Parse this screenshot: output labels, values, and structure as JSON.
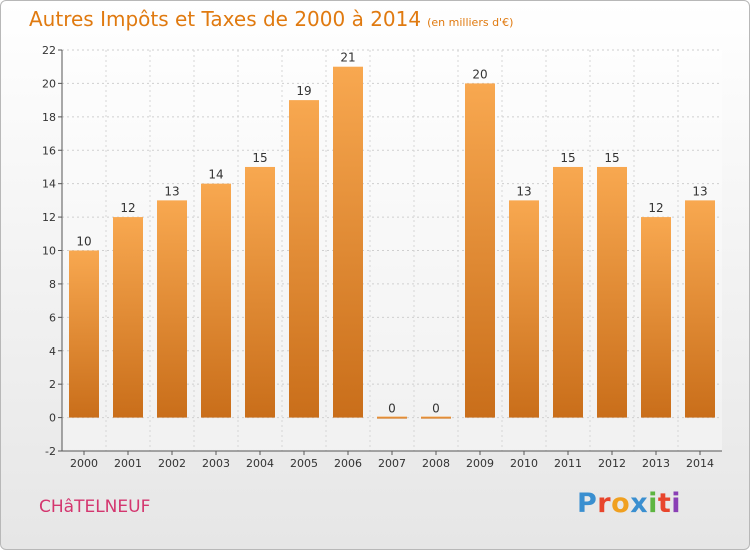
{
  "header": {
    "title": "Autres Impôts et Taxes de 2000 à 2014",
    "unit": "(en milliers d'€)"
  },
  "footer": {
    "commune": "CHâTELNEUF",
    "logo": {
      "letters": [
        "P",
        "r",
        "o",
        "x",
        "i",
        "t",
        "i"
      ],
      "colors": [
        "#3a8fd0",
        "#e8452c",
        "#f0a020",
        "#3a8fd0",
        "#5db540",
        "#e8452c",
        "#8a3fb5"
      ]
    }
  },
  "colors": {
    "bar_light": "#f8a850",
    "bar_dark": "#c96e1a",
    "title": "#e07a10",
    "commune": "#d4366f"
  },
  "chart_data": {
    "type": "bar",
    "title": "Autres Impôts et Taxes de 2000 à 2014",
    "subtitle": "(en milliers d'€)",
    "categories": [
      "2000",
      "2001",
      "2002",
      "2003",
      "2004",
      "2005",
      "2006",
      "2007",
      "2008",
      "2009",
      "2010",
      "2011",
      "2012",
      "2013",
      "2014"
    ],
    "values": [
      10,
      12,
      13,
      14,
      15,
      19,
      21,
      0,
      0,
      20,
      13,
      15,
      15,
      12,
      13
    ],
    "ylim": [
      -2,
      22
    ],
    "yticks": [
      -2,
      0,
      2,
      4,
      6,
      8,
      10,
      12,
      14,
      16,
      18,
      20,
      22
    ],
    "grid": true
  }
}
